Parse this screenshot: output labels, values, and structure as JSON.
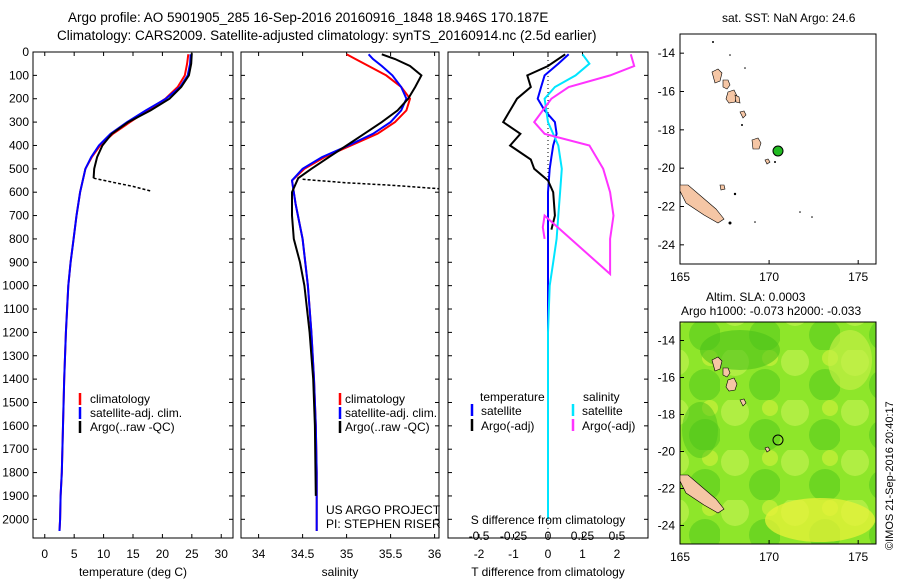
{
  "header": {
    "line1": "Argo profile: AO 5901905_285 16-Sep-2016 20160916_1848 18.946S 170.187E",
    "line2": "Climatology: CARS2009. Satellite-adjusted climatology: synTS_20160914.nc (2.5d earlier)"
  },
  "colors": {
    "climatology": "#ff0000",
    "satellite": "#0000ff",
    "argo": "#000000",
    "cyan": "#00e5ff",
    "magenta": "#ff33ff"
  },
  "legend": {
    "clim": "climatology",
    "sat": "satellite-adj. clim.",
    "argo": "Argo(..raw -QC)"
  },
  "credit": {
    "line1": "US ARGO PROJECT",
    "line2": "PI: STEPHEN RISER"
  },
  "diff_legend": {
    "temp_title": "temperature",
    "sal_title": "salinity",
    "temp_sat": "satellite",
    "temp_argo": "Argo(-adj)",
    "sal_sat": "satellite",
    "sal_argo": "Argo(-adj)",
    "s_axis_label": "S difference from climatology"
  },
  "map_top": {
    "title": "sat. SST: NaN Argo: 24.6"
  },
  "map_bottom": {
    "title1": "Altim. SLA: 0.0003",
    "title2": "Argo h1000: -0.073 h2000: -0.033"
  },
  "imos_label": "©IMOS 21-Sep-2016 20:40:17",
  "chart_data": [
    {
      "type": "line",
      "id": "temperature",
      "xlabel": "temperature (deg C)",
      "ylabel": "",
      "xlim": [
        -2,
        32
      ],
      "ylim": [
        2080,
        0
      ],
      "xticks": [
        0,
        5,
        10,
        15,
        20,
        25,
        30
      ],
      "yticks": [
        0,
        100,
        200,
        300,
        400,
        500,
        600,
        700,
        800,
        900,
        1000,
        1100,
        1200,
        1300,
        1400,
        1500,
        1600,
        1700,
        1800,
        1900,
        2000
      ],
      "series": [
        {
          "name": "climatology",
          "color": "#ff0000",
          "x": [
            24.4,
            24.2,
            23.8,
            22.6,
            20.5,
            17.5,
            14.5,
            11.6,
            9.4,
            8.0,
            6.9,
            6.0,
            5.4,
            4.9,
            4.4,
            4.0,
            3.6,
            3.3,
            3.1,
            2.9,
            2.7,
            2.6,
            2.5
          ],
          "y": [
            10,
            50,
            100,
            150,
            200,
            250,
            300,
            350,
            400,
            450,
            500,
            600,
            700,
            800,
            900,
            1000,
            1200,
            1400,
            1600,
            1800,
            1900,
            2000,
            2050
          ]
        },
        {
          "name": "satellite-adj. clim.",
          "color": "#0000ff",
          "x": [
            24.8,
            24.7,
            24.3,
            23.0,
            20.6,
            17.2,
            14.0,
            11.2,
            9.2,
            7.9,
            6.9,
            6.0,
            5.4,
            4.9,
            4.4,
            4.0,
            3.6,
            3.3,
            3.1,
            2.9,
            2.7,
            2.6,
            2.5
          ],
          "y": [
            10,
            50,
            100,
            150,
            200,
            250,
            300,
            350,
            400,
            450,
            500,
            600,
            700,
            800,
            900,
            1000,
            1200,
            1400,
            1600,
            1800,
            1900,
            2000,
            2050
          ]
        },
        {
          "name": "Argo(..raw -QC)",
          "color": "#000000",
          "x": [
            25.0,
            24.9,
            24.5,
            23.2,
            21.2,
            18.0,
            14.2,
            11.4,
            9.8,
            8.9,
            8.4,
            8.3
          ],
          "y": [
            5,
            50,
            100,
            150,
            200,
            250,
            300,
            350,
            400,
            450,
            500,
            540
          ]
        },
        {
          "name": "Argo dotted",
          "color": "#000000",
          "dashed": true,
          "x": [
            8.3,
            12.0,
            15.0,
            18.0
          ],
          "y": [
            540,
            560,
            575,
            595
          ]
        }
      ]
    },
    {
      "type": "line",
      "id": "salinity",
      "xlabel": "salinity",
      "ylabel": "",
      "xlim": [
        33.8,
        36.05
      ],
      "ylim": [
        2080,
        0
      ],
      "xticks": [
        34,
        34.5,
        35,
        35.5,
        36
      ],
      "xticklabels": [
        "34",
        "34.5",
        "35",
        "35.5",
        "36"
      ],
      "series": [
        {
          "name": "climatology",
          "color": "#ff0000",
          "x": [
            35.0,
            35.1,
            35.25,
            35.45,
            35.62,
            35.72,
            35.68,
            35.55,
            35.35,
            35.05,
            34.75,
            34.52,
            34.38,
            34.42,
            34.5,
            34.56,
            34.6,
            34.63,
            34.65,
            34.66,
            34.66
          ],
          "y": [
            10,
            30,
            60,
            100,
            150,
            200,
            250,
            300,
            350,
            400,
            450,
            500,
            550,
            650,
            800,
            1000,
            1200,
            1400,
            1600,
            1800,
            2050
          ]
        },
        {
          "name": "satellite-adj. clim.",
          "color": "#0000ff",
          "x": [
            35.25,
            35.3,
            35.4,
            35.52,
            35.62,
            35.68,
            35.62,
            35.5,
            35.3,
            35.02,
            34.72,
            34.5,
            34.38,
            34.42,
            34.5,
            34.56,
            34.6,
            34.63,
            34.65,
            34.66,
            34.66
          ],
          "y": [
            10,
            30,
            60,
            100,
            150,
            200,
            250,
            300,
            350,
            400,
            450,
            500,
            550,
            650,
            800,
            1000,
            1200,
            1400,
            1600,
            1800,
            2050
          ]
        },
        {
          "name": "Argo(..raw -QC)",
          "color": "#000000",
          "x": [
            35.4,
            35.55,
            35.72,
            35.85,
            35.78,
            35.7,
            35.58,
            35.4,
            35.2,
            35.0,
            34.8,
            34.6,
            34.45,
            34.38,
            34.38,
            34.4,
            34.47,
            34.52,
            34.58,
            34.62,
            34.64,
            34.65
          ],
          "y": [
            10,
            30,
            60,
            100,
            150,
            200,
            250,
            300,
            350,
            400,
            450,
            500,
            540,
            600,
            700,
            800,
            900,
            1000,
            1200,
            1400,
            1600,
            1900
          ]
        },
        {
          "name": "Argo dotted",
          "color": "#000000",
          "dashed": true,
          "x": [
            34.5,
            35.0,
            35.5,
            36.05
          ],
          "y": [
            545,
            560,
            570,
            585
          ]
        }
      ]
    },
    {
      "type": "line",
      "id": "difference",
      "xlabel": "T difference from climatology",
      "ylabel": "",
      "xlim": [
        -2.9,
        2.9
      ],
      "ylim": [
        2080,
        0
      ],
      "xticks": [
        -2,
        -1,
        0,
        1,
        2
      ],
      "top_ticks": [
        -0.5,
        -0.25,
        0,
        0.25,
        0.5
      ],
      "top_ticklabels": [
        "-0.5",
        "-0.25",
        "0",
        "0.25",
        "0.5"
      ],
      "series": [
        {
          "name": "temperature satellite",
          "color": "#0000ff",
          "x": [
            0.6,
            0.3,
            -0.1,
            -0.2,
            -0.3,
            -0.1,
            0.2,
            0.25,
            0.15,
            0.1,
            0.05,
            0.0,
            0.0,
            0.0,
            0.0,
            0.0,
            0.0,
            0.0,
            0.0
          ],
          "y": [
            10,
            50,
            100,
            150,
            200,
            250,
            300,
            350,
            400,
            450,
            500,
            600,
            700,
            800,
            1000,
            1200,
            1400,
            1700,
            2000
          ]
        },
        {
          "name": "temperature Argo(-adj)",
          "color": "#000000",
          "x": [
            0.5,
            0.0,
            -0.6,
            -0.5,
            -0.9,
            -1.3,
            -0.8,
            -1.1,
            -0.8,
            -0.5,
            -0.4,
            0.0,
            0.15,
            0.2,
            0.1
          ],
          "y": [
            10,
            60,
            100,
            150,
            200,
            300,
            350,
            400,
            430,
            460,
            500,
            550,
            600,
            700,
            760
          ]
        },
        {
          "name": "salinity satellite",
          "color": "#00e5ff",
          "x": [
            1.0,
            1.2,
            0.8,
            0.2,
            -0.1,
            0.0,
            0.3,
            0.4,
            0.35,
            0.3,
            0.25,
            0.15,
            0.05,
            0.0,
            0.0,
            0.0,
            0.0,
            0.0
          ],
          "y": [
            10,
            50,
            100,
            150,
            200,
            300,
            400,
            500,
            600,
            700,
            800,
            900,
            1000,
            1200,
            1400,
            1600,
            1800,
            2000
          ]
        },
        {
          "name": "salinity Argo(-adj)",
          "color": "#ff33ff",
          "x": [
            2.4,
            2.5,
            1.8,
            0.6,
            0.1,
            -0.4,
            -0.1,
            1.2,
            1.6,
            1.8,
            1.9,
            1.8,
            1.8,
            -0.1,
            -0.15,
            -0.1
          ],
          "y": [
            10,
            60,
            100,
            150,
            200,
            300,
            350,
            400,
            500,
            600,
            700,
            800,
            950,
            700,
            750,
            800
          ]
        }
      ]
    },
    {
      "type": "scatter",
      "id": "map-sst",
      "xlim": [
        165,
        176
      ],
      "ylim": [
        -25,
        -13
      ],
      "xticks": [
        165,
        170,
        175
      ],
      "yticks": [
        -14,
        -16,
        -18,
        -20,
        -22,
        -24
      ],
      "x": [
        170.187
      ],
      "y": [
        -18.946
      ]
    },
    {
      "type": "scatter",
      "id": "map-sla",
      "xlim": [
        165,
        176
      ],
      "ylim": [
        -25,
        -13
      ],
      "xticks": [
        165,
        170,
        175
      ],
      "yticks": [
        -14,
        -16,
        -18,
        -20,
        -22,
        -24
      ],
      "x": [
        170.187
      ],
      "y": [
        -18.946
      ]
    }
  ]
}
